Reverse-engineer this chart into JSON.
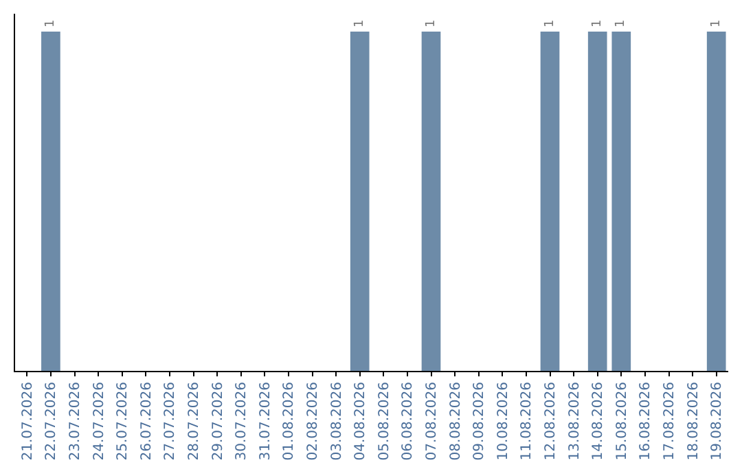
{
  "chart_data": {
    "type": "bar",
    "categories": [
      "21.07.2026",
      "22.07.2026",
      "23.07.2026",
      "24.07.2026",
      "25.07.2026",
      "26.07.2026",
      "27.07.2026",
      "28.07.2026",
      "29.07.2026",
      "30.07.2026",
      "31.07.2026",
      "01.08.2026",
      "02.08.2026",
      "03.08.2026",
      "04.08.2026",
      "05.08.2026",
      "06.08.2026",
      "07.08.2026",
      "08.08.2026",
      "09.08.2026",
      "10.08.2026",
      "11.08.2026",
      "12.08.2026",
      "13.08.2026",
      "14.08.2026",
      "15.08.2026",
      "16.08.2026",
      "17.08.2026",
      "18.08.2026",
      "19.08.2026"
    ],
    "values": [
      0,
      1,
      0,
      0,
      0,
      0,
      0,
      0,
      0,
      0,
      0,
      0,
      0,
      0,
      1,
      0,
      0,
      1,
      0,
      0,
      0,
      0,
      1,
      0,
      1,
      1,
      0,
      0,
      0,
      1
    ],
    "value_labels": [
      null,
      "1",
      null,
      null,
      null,
      null,
      null,
      null,
      null,
      null,
      null,
      null,
      null,
      null,
      "1",
      null,
      null,
      "1",
      null,
      null,
      null,
      null,
      "1",
      null,
      "1",
      "1",
      null,
      null,
      null,
      "1"
    ],
    "color": "#6d8ba8",
    "tick_labels": "x",
    "grid": false,
    "legend": false
  }
}
